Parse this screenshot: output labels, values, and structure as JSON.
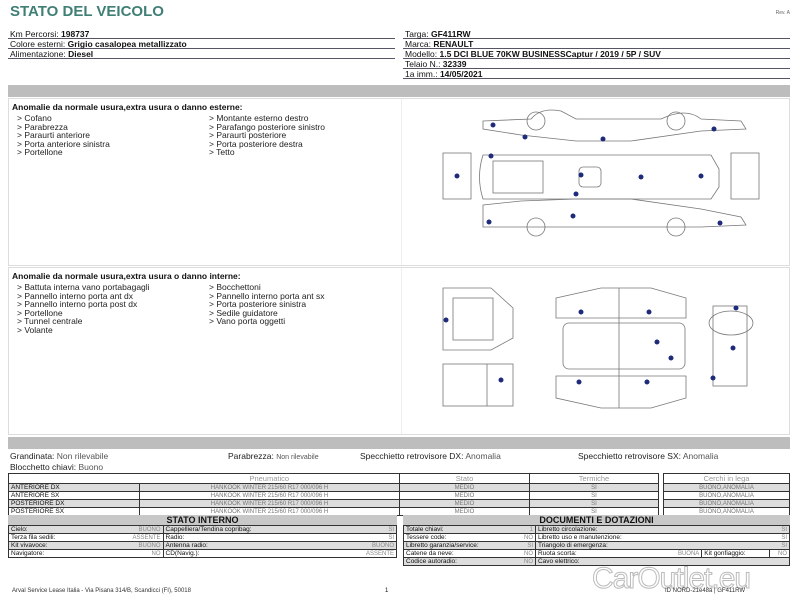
{
  "header": {
    "title": "STATO DEL VEICOLO",
    "rev": "Rev. A"
  },
  "vehicle_left": [
    {
      "label": "Km Percorsi: ",
      "value": "198737"
    },
    {
      "label": "Colore esterni: ",
      "value": "Grigio casalopea metallizzato"
    },
    {
      "label": "Alimentazione: ",
      "value": "Diesel"
    }
  ],
  "vehicle_right": [
    {
      "label": "Targa: ",
      "value": "GF411RW"
    },
    {
      "label": "Marca: ",
      "value": "RENAULT"
    },
    {
      "label": "Modello: ",
      "value": "1.5 DCI BLUE 70KW BUSINESSCaptur / 2019 / 5P / SUV"
    },
    {
      "label": "Telaio N.: ",
      "value": "32339"
    },
    {
      "label": "1a imm.: ",
      "value": "14/05/2021"
    }
  ],
  "exterior": {
    "heading": "Anomalie da normale usura,extra usura o danno esterne:",
    "col1": [
      "> Cofano",
      "> Parabrezza",
      "> Paraurti anteriore",
      "> Porta anteriore sinistra",
      "> Portellone"
    ],
    "col2": [
      "> Montante esterno destro",
      "> Parafango posteriore sinistro",
      "> Paraurti posteriore",
      "> Porta posteriore destra",
      "> Tetto"
    ]
  },
  "interior": {
    "heading": "Anomalie da normale usura,extra usura o danno interne:",
    "col1": [
      "> Battuta interna vano portabagagli",
      "> Pannello interno porta ant dx",
      "> Pannello interno porta post dx",
      "> Portellone",
      "> Tunnel centrale",
      "> Volante"
    ],
    "col2": [
      "> Bocchettoni",
      "> Pannello interno porta ant sx",
      "> Porta posteriore sinistra",
      "> Sedile guidatore",
      "> Vano porta oggetti"
    ]
  },
  "status": {
    "grandinata": {
      "label": "Grandinata: ",
      "value": "Non rilevabile"
    },
    "parabrezza": {
      "label": "Parabrezza: ",
      "value": "Non rilevabile"
    },
    "spec_dx": {
      "label": "Specchietto retrovisore DX: ",
      "value": "Anomalia"
    },
    "spec_sx": {
      "label": "Specchietto retrovisore SX: ",
      "value": "Anomalia"
    },
    "blocchetto": {
      "label": "Blocchetto chiavi: ",
      "value": "Buono"
    }
  },
  "tyres": {
    "headers": [
      "Pneumatico",
      "Stato",
      "Termiche",
      "Cerchi in lega"
    ],
    "rows": [
      {
        "pos": "ANTERIORE DX",
        "tyre": "HANKOOK WINTER 215/60 R17 000/096 H",
        "stato": "MEDIO",
        "termiche": "SI",
        "cerchi": "BUONO,ANOMALIA"
      },
      {
        "pos": "ANTERIORE SX",
        "tyre": "HANKOOK WINTER 215/60 R17 000/096 H",
        "stato": "MEDIO",
        "termiche": "SI",
        "cerchi": "BUONO,ANOMALIA"
      },
      {
        "pos": "POSTERIORE DX",
        "tyre": "HANKOOK WINTER 215/60 R17 000/096 H",
        "stato": "MEDIO",
        "termiche": "SI",
        "cerchi": "BUONO,ANOMALIA"
      },
      {
        "pos": "POSTERIORE SX",
        "tyre": "HANKOOK WINTER 215/60 R17 000/096 H",
        "stato": "MEDIO",
        "termiche": "SI",
        "cerchi": "BUONO,ANOMALIA"
      }
    ]
  },
  "stato_interno": {
    "title": "STATO INTERNO",
    "rows": [
      [
        "Cielo:",
        "BUONO",
        "Cappelliera/Tendina copribag:",
        "SI"
      ],
      [
        "Terza fila sedili:",
        "ASSENTE",
        "Radio:",
        "SI"
      ],
      [
        "Kit vivavoce:",
        "BUONO",
        "Antenna radio:",
        "BUONO"
      ],
      [
        "Navigatore:",
        "NO",
        "CD(Navig.):",
        "ASSENTE"
      ]
    ]
  },
  "documenti": {
    "title": "DOCUMENTI E DOTAZIONI",
    "rows": [
      [
        "Totale chiavi:",
        "1",
        "Libretto circolazione:",
        "SI"
      ],
      [
        "Tessere code:",
        "NO",
        "Libretto uso e manutenzione:",
        "SI"
      ],
      [
        "Libretto garanzia/service:",
        "SI",
        "Triangolo di emergenza:",
        "SI"
      ],
      [
        "Catene da neve:",
        "NO",
        "Ruota scorta:",
        "BUONA"
      ],
      [
        "Codice autoradio:",
        "NO",
        "Cavo elettrico:",
        ""
      ]
    ],
    "kit_label": "Kit gonfiaggio:",
    "kit_value": "NO"
  },
  "footer": {
    "company": "Arval Service Lease Italia - Via Pisana 314/B, Scandicci (FI), 50018",
    "page": "1",
    "doc_id": "ID NORD-21e48a | GF411RW",
    "watermark": "CarOutlet.eu"
  },
  "colors": {
    "title": "#3f7f76",
    "damage_dot": "#1e2a7a",
    "bar": "#bdbdbd"
  }
}
